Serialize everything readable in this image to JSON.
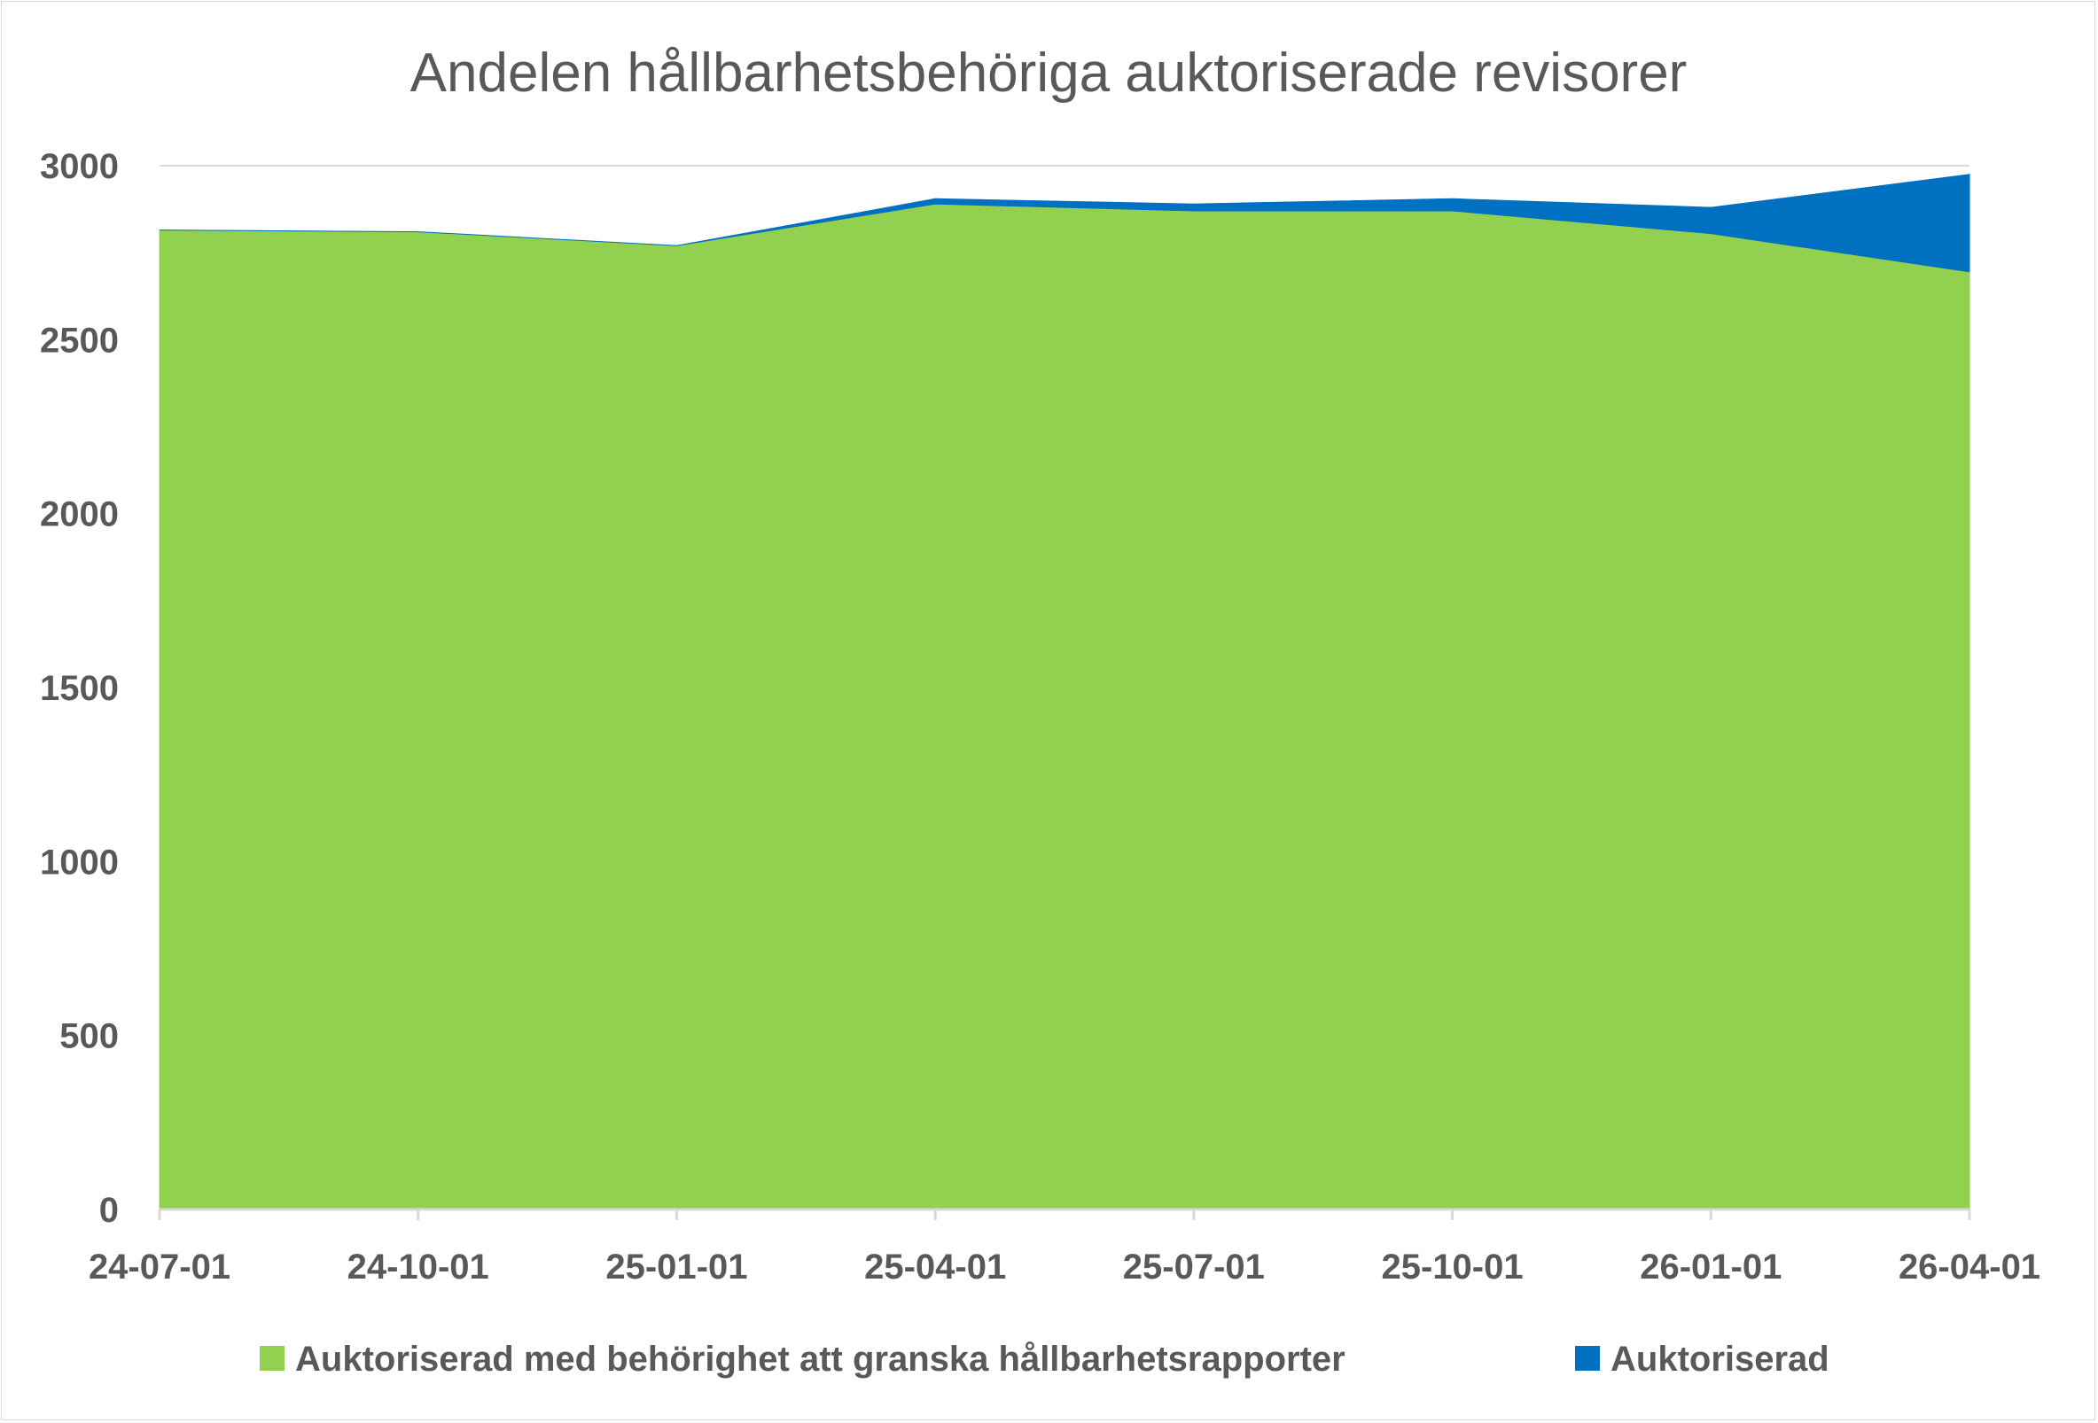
{
  "chart_data": {
    "type": "area",
    "stacked": true,
    "title": "Andelen hållbarhetsbehöriga auktoriserade revisorer",
    "xlabel": "",
    "ylabel": "",
    "categories": [
      "24-07-01",
      "24-10-01",
      "25-01-01",
      "25-04-01",
      "25-07-01",
      "25-10-01",
      "26-01-01",
      "26-04-01"
    ],
    "ylim": [
      0,
      3000
    ],
    "yticks": [
      "0",
      "500",
      "1000",
      "1500",
      "2000",
      "2500",
      "3000"
    ],
    "grid": true,
    "legend_position": "bottom",
    "series": [
      {
        "name": "Auktoriserad med behörighet att granska hållbarhetsrapporter",
        "color": "#92d050",
        "values": [
          2815,
          2810,
          2770,
          2890,
          2870,
          2870,
          2805,
          2695
        ]
      },
      {
        "name": "Auktoriserad",
        "color": "#0070c0",
        "values": [
          0,
          0,
          0,
          15,
          20,
          35,
          75,
          280
        ]
      }
    ]
  }
}
